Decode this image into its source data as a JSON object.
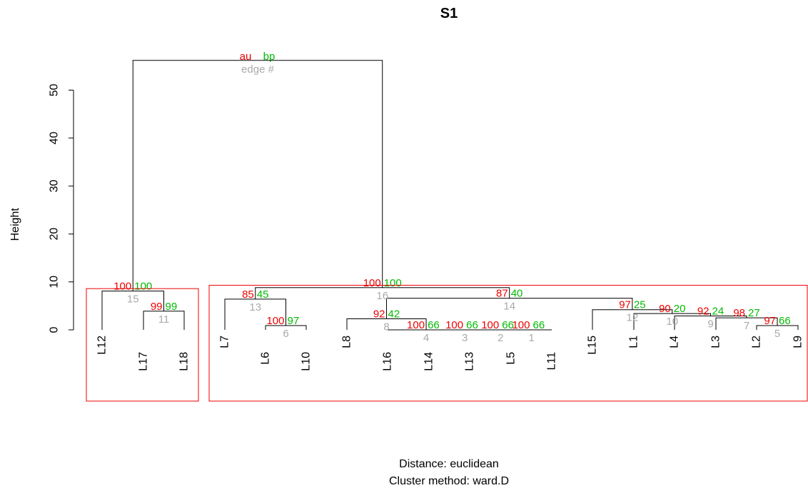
{
  "chart_data": {
    "type": "dendrogram",
    "title": "S1",
    "ylabel": "Height",
    "xlabel_line1": "Distance:  euclidean",
    "xlabel_line2": "Cluster method: ward.D",
    "yticks": [
      0,
      10,
      20,
      30,
      40,
      50
    ],
    "ylim": [
      0,
      56.5
    ],
    "legend": {
      "au": "au",
      "bp": "bp",
      "edge": "edge #"
    },
    "colors": {
      "au": "#ee0000",
      "bp": "#00bb00",
      "edge": "#aaaaaa",
      "line": "#000000",
      "box": "#ee0000"
    },
    "leaves": [
      "L12",
      "L17",
      "L18",
      "L7",
      "L6",
      "L10",
      "L8",
      "L16",
      "L14",
      "L13",
      "L5",
      "L11",
      "L15",
      "L1",
      "L4",
      "L3",
      "L2",
      "L9"
    ],
    "merges": [
      {
        "edge": 1,
        "left": "L5",
        "right": "L11",
        "height": 0.0,
        "au": 100,
        "bp": 66
      },
      {
        "edge": 2,
        "left": "L13",
        "right": "c1",
        "height": 0.0,
        "au": 100,
        "bp": 66
      },
      {
        "edge": 3,
        "left": "L14",
        "right": "c2",
        "height": 0.0,
        "au": 100,
        "bp": 66
      },
      {
        "edge": 4,
        "left": "L16",
        "right": "c3",
        "height": 0.0,
        "au": 100,
        "bp": 66
      },
      {
        "edge": 5,
        "left": "L2",
        "right": "L9",
        "height": 0.9,
        "au": 97,
        "bp": 66
      },
      {
        "edge": 6,
        "left": "L6",
        "right": "L10",
        "height": 0.9,
        "au": 100,
        "bp": 97
      },
      {
        "edge": 7,
        "left": "L3",
        "right": "c5",
        "height": 2.5,
        "au": 98,
        "bp": 27
      },
      {
        "edge": 8,
        "left": "L8",
        "right": "c4",
        "height": 2.3,
        "au": 92,
        "bp": 42
      },
      {
        "edge": 9,
        "left": "L4",
        "right": "c7",
        "height": 2.9,
        "au": 92,
        "bp": 24
      },
      {
        "edge": 10,
        "left": "L1",
        "right": "c9",
        "height": 3.4,
        "au": 90,
        "bp": 20
      },
      {
        "edge": 11,
        "left": "L17",
        "right": "L18",
        "height": 3.9,
        "au": 99,
        "bp": 99
      },
      {
        "edge": 12,
        "left": "L15",
        "right": "c10",
        "height": 4.2,
        "au": 97,
        "bp": 25
      },
      {
        "edge": 13,
        "left": "L7",
        "right": "c6",
        "height": 6.4,
        "au": 85,
        "bp": 45
      },
      {
        "edge": 14,
        "left": "c8",
        "right": "c12",
        "height": 6.6,
        "au": 87,
        "bp": 40
      },
      {
        "edge": 15,
        "left": "L12",
        "right": "c11",
        "height": 8.1,
        "au": 100,
        "bp": 100
      },
      {
        "edge": 16,
        "left": "c13",
        "right": "c14",
        "height": 8.8,
        "au": 100,
        "bp": 100
      },
      {
        "edge": 17,
        "left": "c15",
        "right": "c16",
        "height": 56.2,
        "au": "",
        "bp": ""
      }
    ],
    "highlight_clusters": [
      [
        "L12",
        "L17",
        "L18"
      ],
      [
        "L7",
        "L6",
        "L10",
        "L8",
        "L16",
        "L14",
        "L13",
        "L5",
        "L11",
        "L15",
        "L1",
        "L4",
        "L3",
        "L2",
        "L9"
      ]
    ]
  }
}
